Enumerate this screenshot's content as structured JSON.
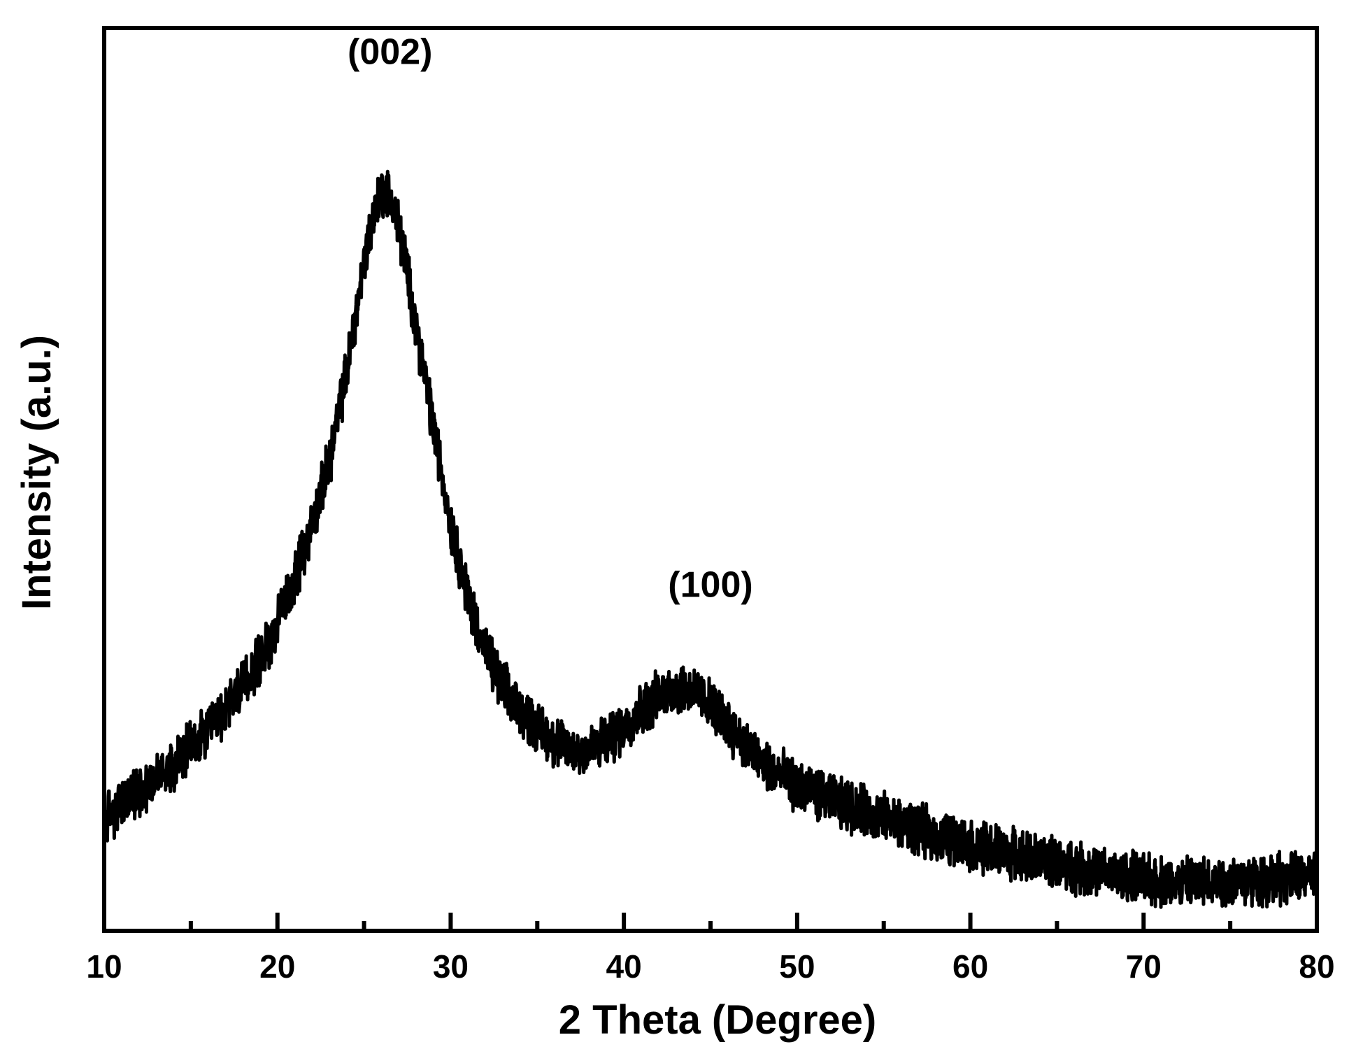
{
  "chart_data": {
    "type": "line",
    "xlabel": "2 Theta (Degree)",
    "ylabel": "Intensity (a.u.)",
    "xlim": [
      10,
      80
    ],
    "ylim": [
      0,
      1
    ],
    "x_ticks": [
      10,
      20,
      30,
      40,
      50,
      60,
      70,
      80
    ],
    "x_minor_ticks": [
      15,
      25,
      35,
      45,
      55,
      65,
      75
    ],
    "y_ticks": [],
    "grid": false,
    "legend": "none",
    "line_color": "#000000",
    "annotations": [
      {
        "text": "(002)",
        "x": 26.5,
        "y": 0.96
      },
      {
        "text": "(100)",
        "x": 45.0,
        "y": 0.37
      }
    ],
    "series": [
      {
        "x": [
          10,
          12,
          14,
          16,
          18,
          19,
          20,
          21,
          22,
          23,
          24,
          24.5,
          25,
          25.5,
          26,
          26.5,
          27,
          27.5,
          28,
          29,
          30,
          31,
          32,
          33,
          34,
          35,
          36,
          37,
          38,
          39,
          40,
          41,
          42,
          43,
          44,
          45,
          46,
          47,
          48,
          50,
          52,
          55,
          58,
          60,
          62,
          65,
          68,
          70,
          72,
          75,
          78,
          80
        ],
        "y": [
          0.125,
          0.155,
          0.185,
          0.22,
          0.27,
          0.3,
          0.34,
          0.39,
          0.45,
          0.52,
          0.62,
          0.68,
          0.74,
          0.79,
          0.82,
          0.815,
          0.78,
          0.73,
          0.67,
          0.56,
          0.45,
          0.37,
          0.31,
          0.27,
          0.245,
          0.225,
          0.21,
          0.2,
          0.2,
          0.21,
          0.225,
          0.245,
          0.26,
          0.27,
          0.265,
          0.25,
          0.23,
          0.205,
          0.185,
          0.16,
          0.145,
          0.125,
          0.105,
          0.095,
          0.087,
          0.075,
          0.063,
          0.057,
          0.053,
          0.055,
          0.058,
          0.06
        ],
        "noise_amplitude": 0.022
      }
    ]
  }
}
